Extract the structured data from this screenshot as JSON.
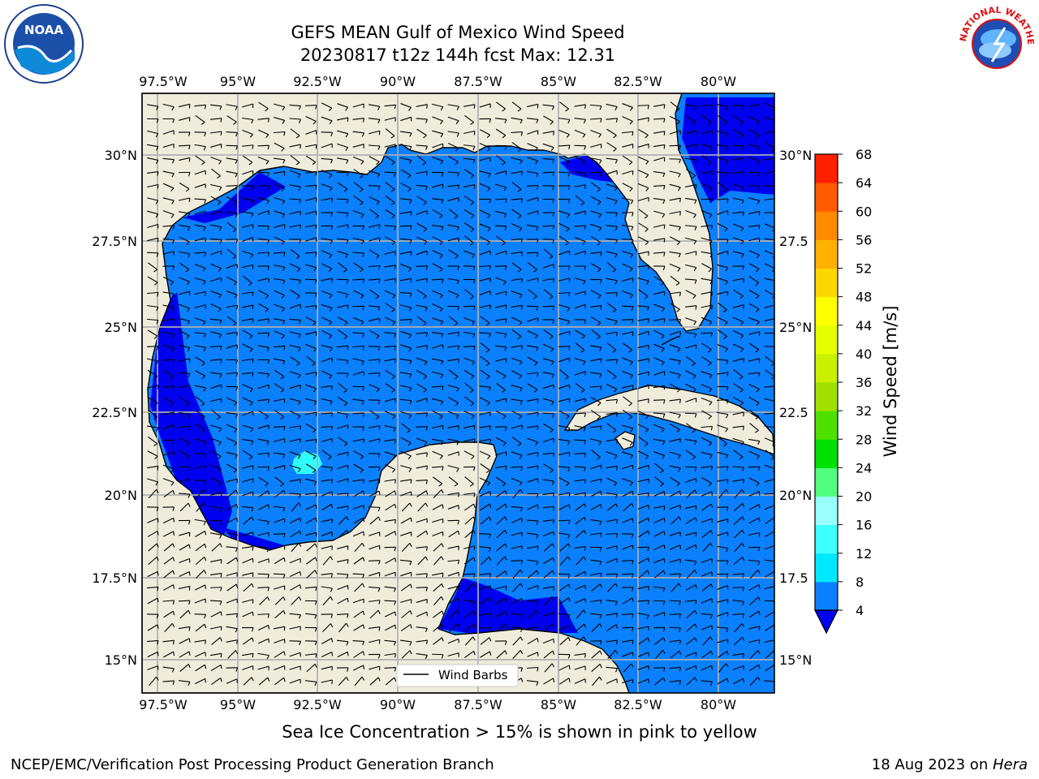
{
  "title": {
    "line1": "GEFS MEAN Gulf of Mexico Wind Speed",
    "line2": "20230817 t12z 144h fcst   Max: 12.31"
  },
  "map": {
    "lon_labels": [
      "97.5°W",
      "95°W",
      "92.5°W",
      "90°W",
      "87.5°W",
      "85°W",
      "82.5°W",
      "80°W"
    ],
    "lat_labels": [
      "30°N",
      "27.5°N",
      "25°N",
      "22.5°N",
      "20°N",
      "17.5°N",
      "15°N"
    ],
    "lat_labels_right": [
      "30°N",
      "27.5",
      "25°N",
      "22.5",
      "20°N",
      "17.5",
      "15°N"
    ],
    "legend_label": "Wind Barbs",
    "land_color": "#efecdb",
    "sea_color": "#0a80ff",
    "colors": {
      "calm": "#0000f0",
      "moderate": "#2fffff"
    }
  },
  "colorbar": {
    "title": "Wind Speed [m/s]",
    "ticks": [
      "4",
      "8",
      "12",
      "16",
      "20",
      "24",
      "28",
      "32",
      "36",
      "40",
      "44",
      "48",
      "52",
      "56",
      "60",
      "64",
      "68"
    ],
    "colors": [
      "#0a80ff",
      "#00e8ff",
      "#3dffff",
      "#99ffff",
      "#50ff80",
      "#00e000",
      "#50e000",
      "#a0e000",
      "#c8f000",
      "#e6ff00",
      "#ffff00",
      "#ffd700",
      "#ffb000",
      "#ff8c00",
      "#ff5a00",
      "#ff2000"
    ],
    "under_color": "#0000f0"
  },
  "note": "Sea Ice Concentration > 15% is shown in pink to yellow",
  "footer": {
    "left": "NCEP/EMC/Verification Post Processing Product Generation Branch",
    "right_prefix": "18 Aug 2023 on ",
    "right_host": "Hera"
  },
  "logos": {
    "noaa_text": "NOAA",
    "nws_text": "NATIONAL WEATHER SERVICE"
  }
}
